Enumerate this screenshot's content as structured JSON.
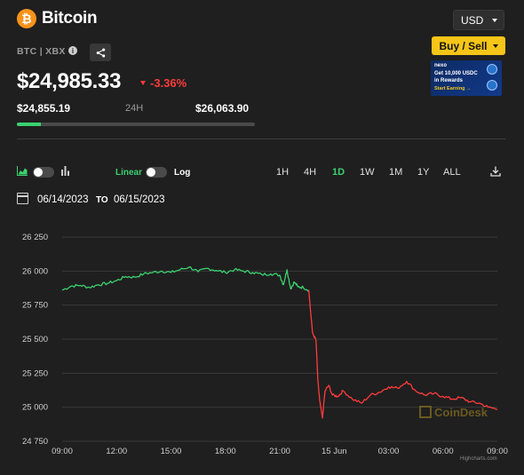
{
  "header": {
    "coin_symbol_glyph": "₿",
    "coin_name": "Bitcoin",
    "currency": "USD",
    "buy_sell_label": "Buy / Sell",
    "ticker": "BTC | XBX",
    "info_glyph": "i",
    "share_icon": "share-icon"
  },
  "ad": {
    "brand": "nexo",
    "line1": "Get 10,000 USDC",
    "line2": "in Rewards",
    "cta": "Start Earning →"
  },
  "price": {
    "current": "$24,985.33",
    "change": "-3.36%",
    "low": "$24,855.19",
    "period": "24H",
    "high": "$26,063.90",
    "range_position_percent": 10
  },
  "controls": {
    "linear_label": "Linear",
    "log_label": "Log",
    "timeframes": [
      "1H",
      "4H",
      "1D",
      "1W",
      "1M",
      "1Y",
      "ALL"
    ],
    "active_timeframe": "1D",
    "download_icon": "download-icon"
  },
  "dates": {
    "from": "06/14/2023",
    "to_label": "TO",
    "until": "06/15/2023"
  },
  "colors": {
    "up": "#3bd16f",
    "down": "#ff3b3b",
    "accent": "#f5c518"
  },
  "watermark": "CoinDesk",
  "credit": "Highcharts.com",
  "chart_data": {
    "type": "line",
    "title": "",
    "xlabel": "",
    "ylabel": "",
    "ylim": [
      24750,
      26250
    ],
    "yticks": [
      24750,
      25000,
      25250,
      25500,
      25750,
      26000,
      26250
    ],
    "ytick_labels": [
      "24 750",
      "25 000",
      "25 250",
      "25 500",
      "25 750",
      "26 000",
      "26 250"
    ],
    "xlim": [
      0,
      24
    ],
    "xticks": [
      0,
      3,
      6,
      9,
      12,
      15,
      18,
      21,
      24
    ],
    "xtick_labels": [
      "09:00",
      "12:00",
      "15:00",
      "18:00",
      "21:00",
      "15 Jun",
      "03:00",
      "06:00",
      "09:00"
    ],
    "grid": true,
    "legend": "none",
    "series": [
      {
        "color": "#3bd16f",
        "x": [
          0,
          0.5,
          1,
          1.5,
          2,
          2.5,
          3,
          3.5,
          4,
          4.5,
          5,
          5.5,
          6,
          6.5,
          7,
          7.5,
          8,
          8.5,
          9,
          9.5,
          10,
          10.5,
          11,
          11.5,
          12,
          12.2,
          12.4,
          12.6,
          12.8,
          13,
          13.3,
          13.6
        ],
        "y": [
          25860,
          25890,
          25895,
          25880,
          25900,
          25910,
          25930,
          25960,
          25955,
          25980,
          25990,
          26000,
          25990,
          26010,
          26030,
          25995,
          26020,
          26005,
          25990,
          26010,
          26000,
          25990,
          25975,
          25980,
          25970,
          25900,
          26010,
          25870,
          25920,
          25885,
          25880,
          25860
        ]
      },
      {
        "color": "#ff3b3b",
        "x": [
          13.6,
          13.8,
          14,
          14.1,
          14.2,
          14.35,
          14.5,
          14.7,
          14.9,
          15.2,
          15.5,
          16,
          16.5,
          17,
          17.5,
          18,
          18.5,
          19,
          19.5,
          20,
          20.5,
          21,
          21.5,
          22,
          22.5,
          23,
          23.5,
          24
        ],
        "y": [
          25860,
          25550,
          25490,
          25200,
          25050,
          24920,
          25120,
          25160,
          25090,
          25080,
          25120,
          25060,
          25030,
          25090,
          25110,
          25150,
          25140,
          25190,
          25120,
          25090,
          25100,
          25080,
          25060,
          25070,
          25040,
          25030,
          25000,
          24985
        ]
      }
    ]
  }
}
